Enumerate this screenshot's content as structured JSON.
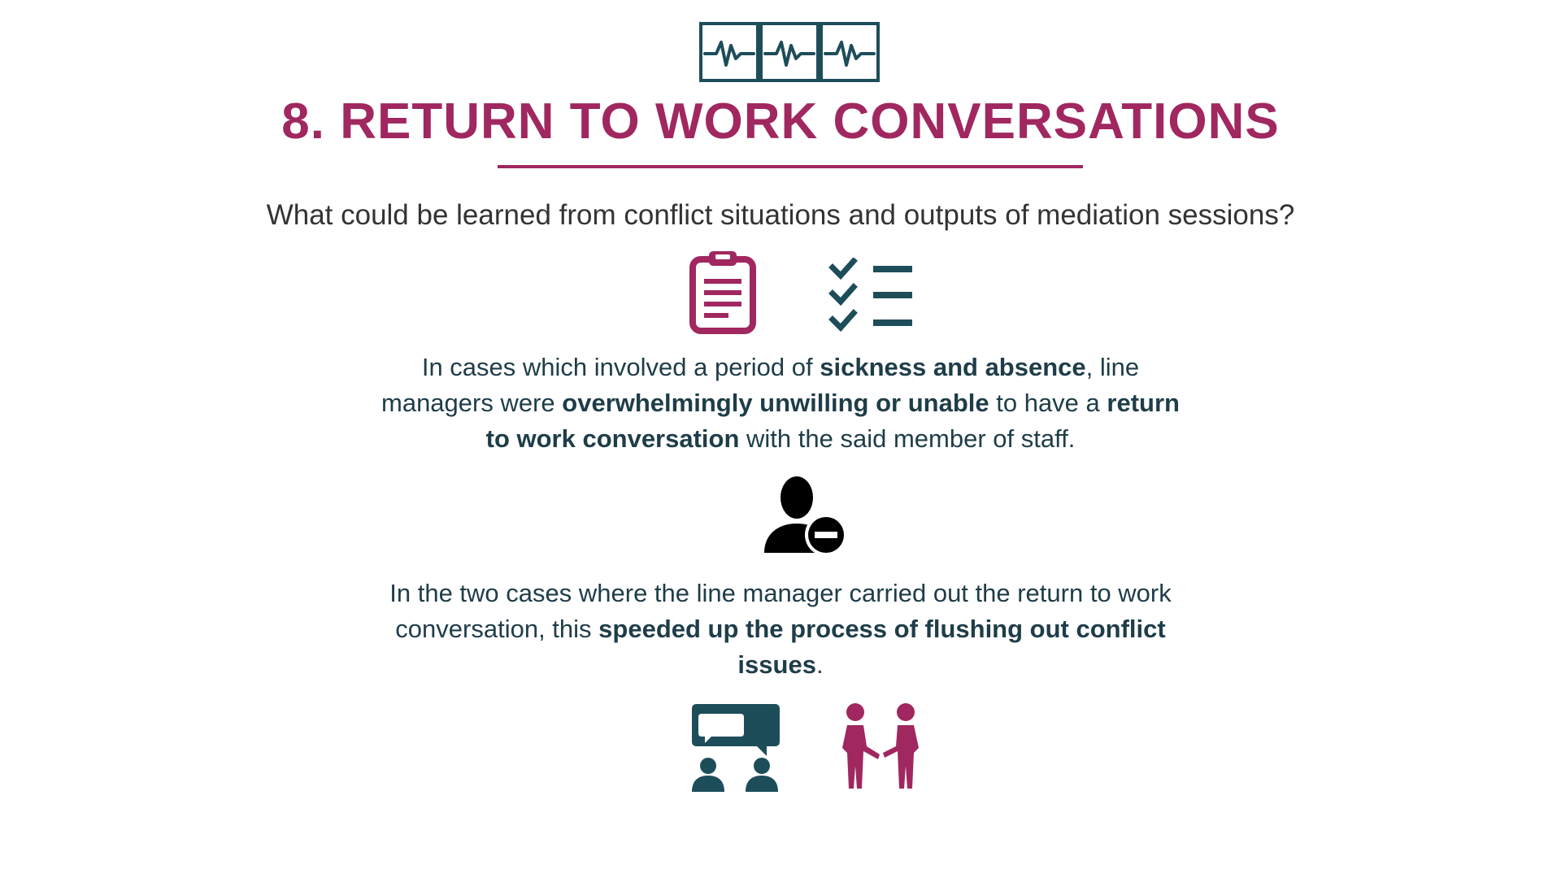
{
  "header": {
    "icon": "heart-monitor-icon",
    "title": "8. RETURN TO WORK CONVERSATIONS",
    "question": "What could be learned from conflict situations and outputs of mediation sessions?"
  },
  "section1": {
    "icons": [
      "clipboard-icon",
      "checklist-icon"
    ],
    "text_parts": [
      "In cases which involved a period of ",
      "sickness and absence",
      ", line managers were ",
      "overwhelmingly unwilling or unable",
      " to have a ",
      "return to work conversation",
      " with the said member of staff."
    ]
  },
  "section2": {
    "icon": "user-minus-icon",
    "text_parts": [
      "In the two cases where the line manager carried out the return to work conversation, this ",
      "speeded up the process of flushing out conflict issues",
      "."
    ]
  },
  "footer": {
    "icons": [
      "meeting-icon",
      "handshake-icon"
    ]
  },
  "colors": {
    "accent": "#a0275f",
    "teal": "#1e4d5a",
    "text": "#1e3d49",
    "question": "#333333"
  }
}
